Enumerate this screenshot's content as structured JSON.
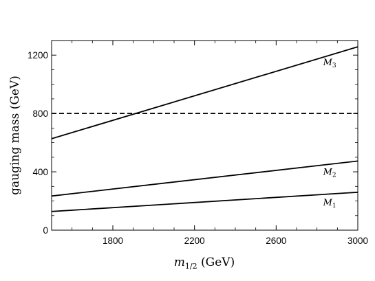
{
  "chart_data": {
    "type": "line",
    "xlabel": "m1/2 (GeV)",
    "xlabel_parts": {
      "symbol": "m",
      "subscript": "1/2",
      "unit": " (GeV)"
    },
    "ylabel": "gauging mass (GeV)",
    "xlim": [
      1500,
      3000
    ],
    "ylim": [
      0,
      1300
    ],
    "xticks": [
      1800,
      2200,
      2600,
      3000
    ],
    "yticks": [
      0,
      400,
      800,
      1200
    ],
    "grid": false,
    "series": [
      {
        "name": "M3",
        "symbol": "M",
        "subscript": "3",
        "x": [
          1500,
          3000
        ],
        "y": [
          627,
          1257
        ],
        "style": "solid",
        "label_at": [
          2830,
          1130
        ]
      },
      {
        "name": "M2",
        "symbol": "M",
        "subscript": "2",
        "x": [
          1500,
          3000
        ],
        "y": [
          234,
          474
        ],
        "style": "solid",
        "label_at": [
          2830,
          380
        ]
      },
      {
        "name": "M1",
        "symbol": "M",
        "subscript": "1",
        "x": [
          1500,
          3000
        ],
        "y": [
          128,
          260
        ],
        "style": "solid",
        "label_at": [
          2830,
          170
        ]
      },
      {
        "name": "",
        "x": [
          1500,
          3000
        ],
        "y": [
          800,
          800
        ],
        "style": "dashed"
      }
    ],
    "colors": {
      "line": "#000000",
      "background": "#ffffff"
    }
  }
}
